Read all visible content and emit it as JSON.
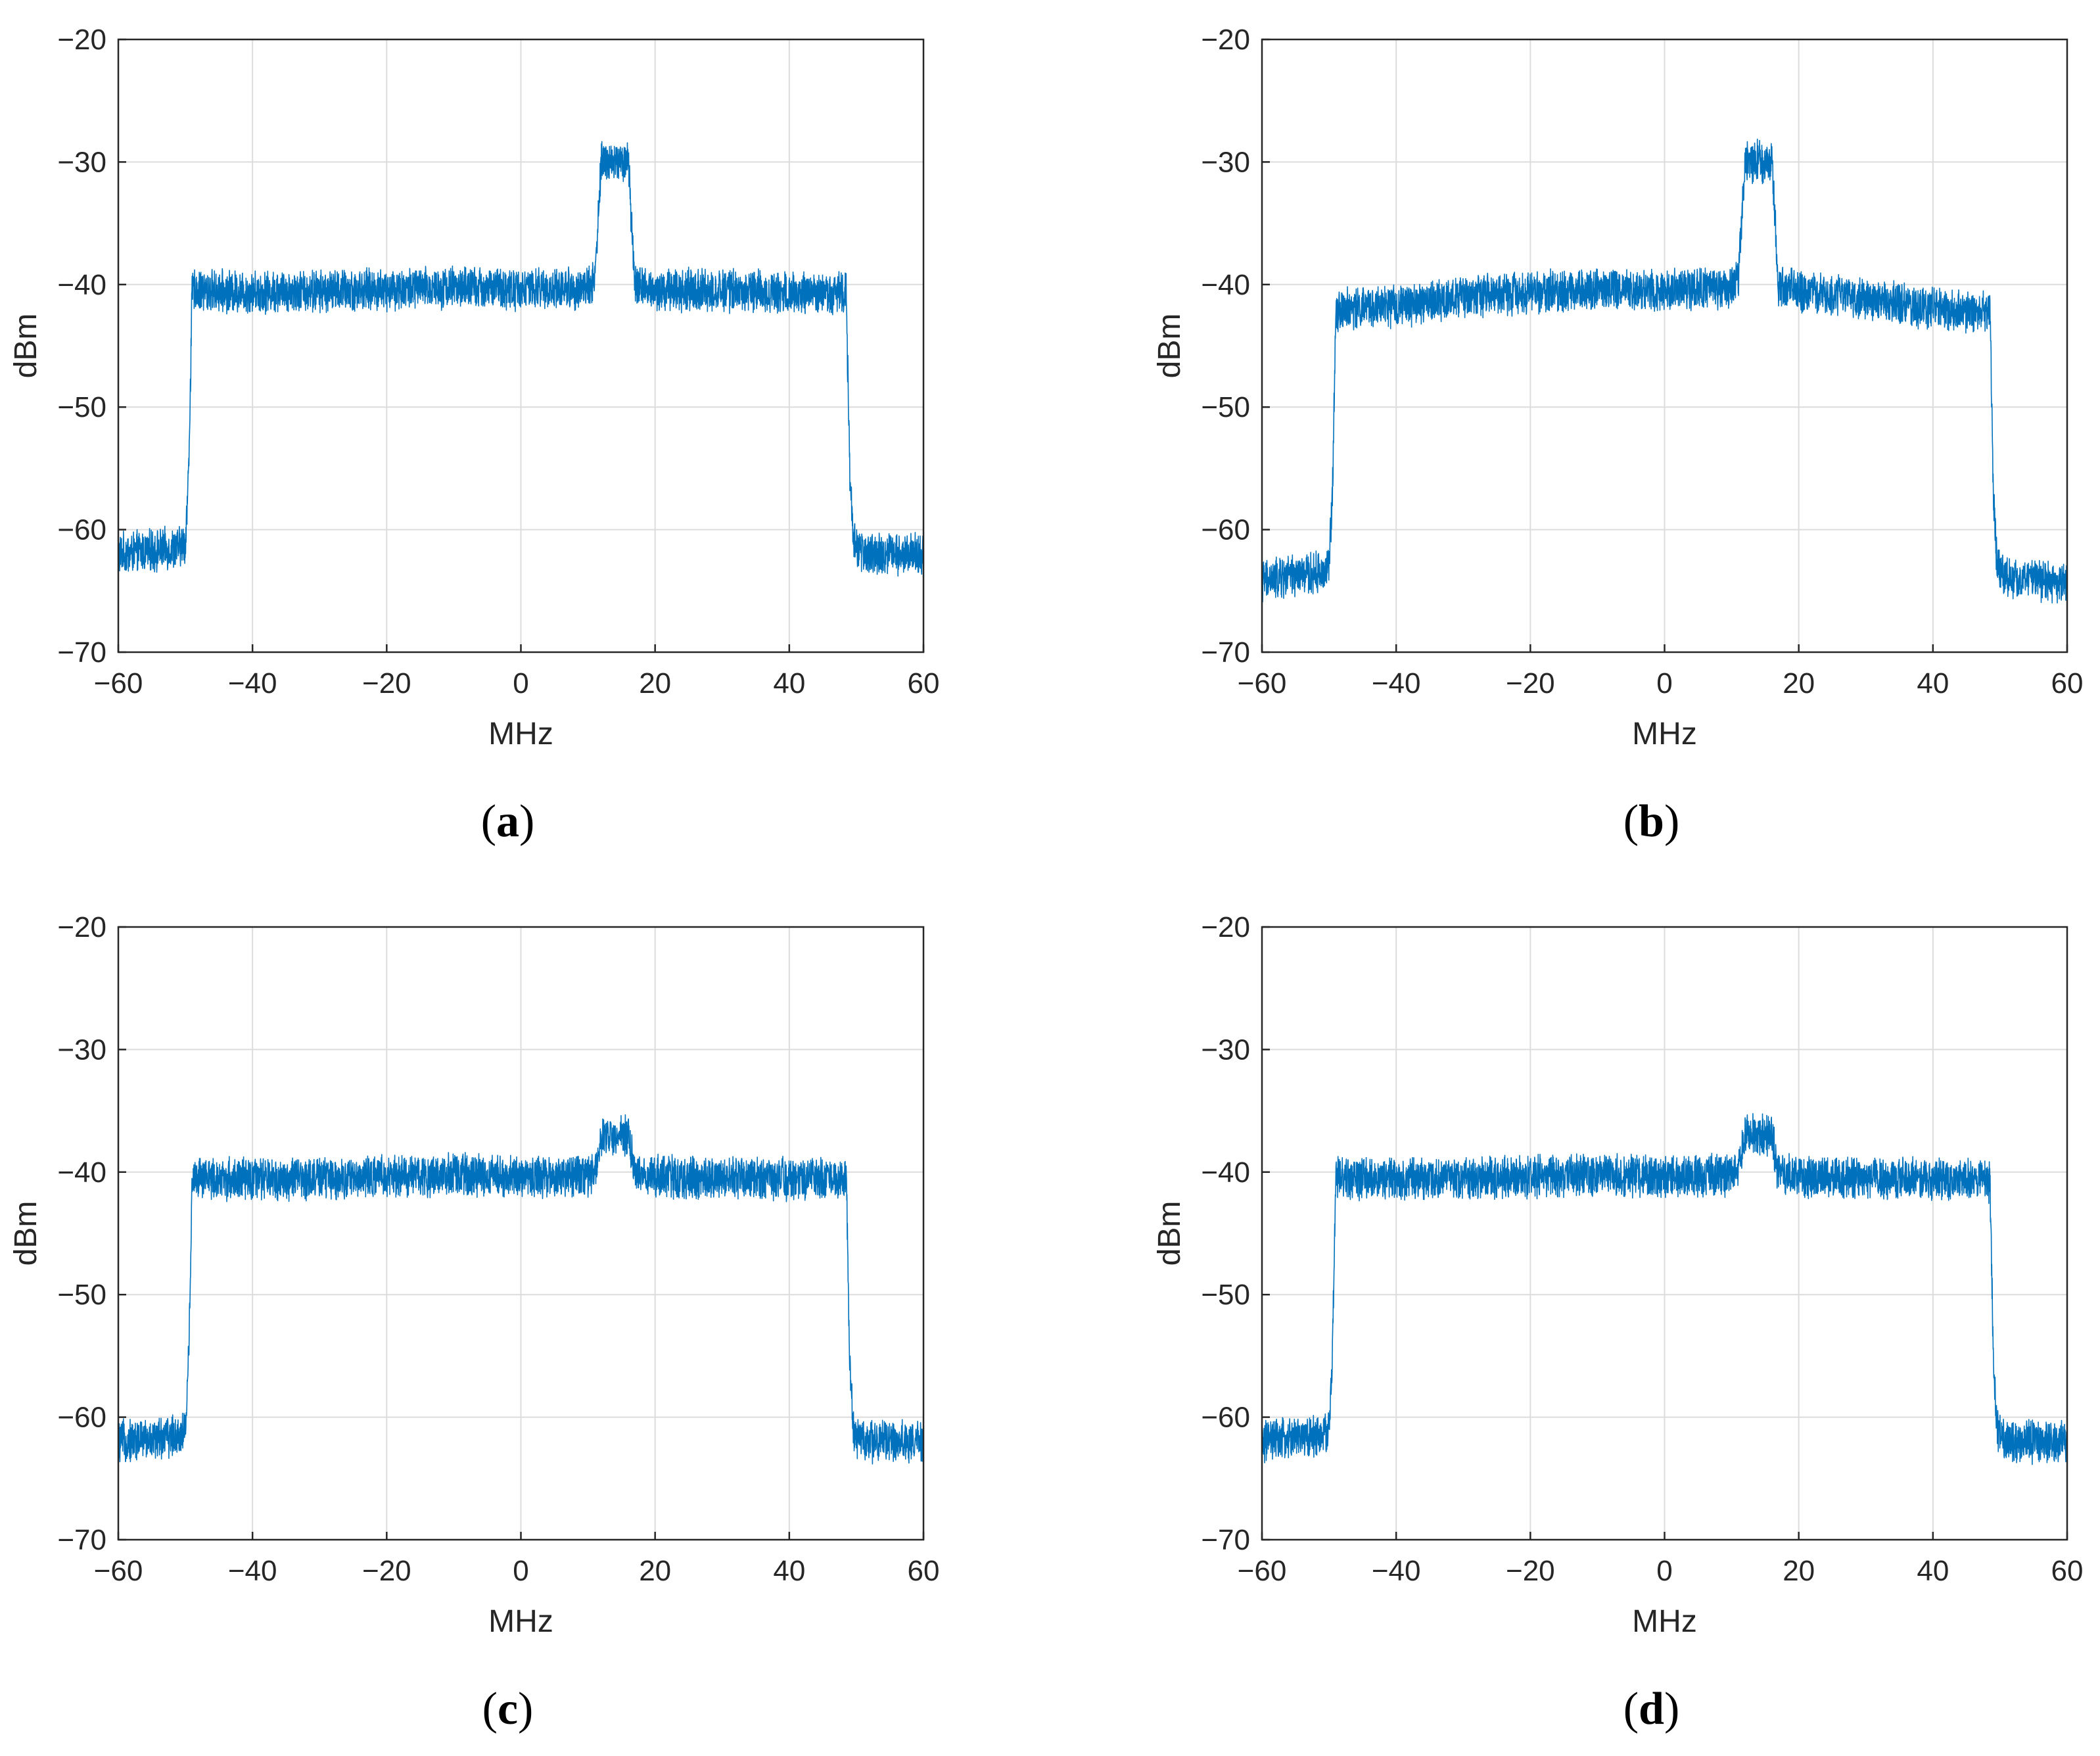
{
  "style": {
    "trace_color": "#0072BD",
    "grid_color": "#dcdcdc",
    "axis_color": "#262626"
  },
  "chart_data": [
    {
      "panel": "a",
      "type": "line",
      "xlabel": "MHz",
      "ylabel": "dBm",
      "xlim": [
        -60,
        60
      ],
      "ylim": [
        -70,
        -20
      ],
      "xticks": [
        -60,
        -40,
        -20,
        0,
        20,
        40,
        60
      ],
      "yticks": [
        -20,
        -30,
        -40,
        -50,
        -60,
        -70
      ],
      "grid": true,
      "series": [
        {
          "x": [
            -60,
            -51,
            -50,
            -49.5,
            -49,
            -40,
            -20,
            -10,
            0,
            10,
            11,
            12,
            16,
            17,
            20,
            30,
            40,
            48.5,
            49,
            49.5,
            50,
            51,
            60
          ],
          "y": [
            -62,
            -61.5,
            -61,
            -55,
            -40.5,
            -40.6,
            -40.4,
            -40.2,
            -40.4,
            -40.3,
            -39.5,
            -30,
            -30,
            -40,
            -40.4,
            -40.5,
            -40.6,
            -40.7,
            -55,
            -61,
            -61.5,
            -62,
            -62
          ]
        }
      ]
    },
    {
      "panel": "b",
      "type": "line",
      "xlabel": "MHz",
      "ylabel": "dBm",
      "xlim": [
        -60,
        60
      ],
      "ylim": [
        -70,
        -20
      ],
      "xticks": [
        -60,
        -40,
        -20,
        0,
        20,
        40,
        60
      ],
      "yticks": [
        -20,
        -30,
        -40,
        -50,
        -60,
        -70
      ],
      "grid": true,
      "series": [
        {
          "x": [
            -60,
            -51,
            -50,
            -49.5,
            -49,
            -40,
            -30,
            -20,
            -10,
            0,
            10,
            11,
            12,
            16,
            17,
            20,
            30,
            40,
            48.5,
            49,
            49.5,
            50,
            51,
            60
          ],
          "y": [
            -64.2,
            -63.5,
            -63,
            -57,
            -42,
            -41.8,
            -41.0,
            -40.6,
            -40.3,
            -40.4,
            -40.3,
            -39.5,
            -30,
            -30,
            -40.2,
            -40.6,
            -41.2,
            -42.0,
            -42.3,
            -57,
            -62.5,
            -63.5,
            -64,
            -64.2
          ]
        }
      ]
    },
    {
      "panel": "c",
      "type": "line",
      "xlabel": "MHz",
      "ylabel": "dBm",
      "xlim": [
        -60,
        60
      ],
      "ylim": [
        -70,
        -20
      ],
      "xticks": [
        -60,
        -40,
        -20,
        0,
        20,
        40,
        60
      ],
      "yticks": [
        -20,
        -30,
        -40,
        -50,
        -60,
        -70
      ],
      "grid": true,
      "series": [
        {
          "x": [
            -60,
            -51,
            -50,
            -49.5,
            -49,
            -40,
            -20,
            -10,
            0,
            10,
            11,
            12,
            16,
            17,
            20,
            30,
            40,
            48.5,
            49,
            49.5,
            50,
            51,
            60
          ],
          "y": [
            -62,
            -61.5,
            -61,
            -55,
            -40.5,
            -40.6,
            -40.4,
            -40.2,
            -40.4,
            -40.3,
            -39.8,
            -37,
            -37,
            -40.2,
            -40.4,
            -40.5,
            -40.6,
            -40.7,
            -55,
            -61,
            -61.5,
            -62,
            -62
          ]
        }
      ]
    },
    {
      "panel": "d",
      "type": "line",
      "xlabel": "MHz",
      "ylabel": "dBm",
      "xlim": [
        -60,
        60
      ],
      "ylim": [
        -70,
        -20
      ],
      "xticks": [
        -60,
        -40,
        -20,
        0,
        20,
        40,
        60
      ],
      "yticks": [
        -20,
        -30,
        -40,
        -50,
        -60,
        -70
      ],
      "grid": true,
      "series": [
        {
          "x": [
            -60,
            -51,
            -50,
            -49.5,
            -49,
            -40,
            -20,
            -10,
            0,
            10,
            11,
            12,
            16,
            17,
            20,
            30,
            40,
            48.5,
            49,
            49.5,
            50,
            51,
            60
          ],
          "y": [
            -62,
            -61.5,
            -61,
            -55,
            -40.5,
            -40.6,
            -40.4,
            -40.2,
            -40.4,
            -40.3,
            -39.8,
            -37,
            -37,
            -40.2,
            -40.4,
            -40.5,
            -40.6,
            -40.7,
            -55,
            -61,
            -61.5,
            -62,
            -62
          ]
        }
      ]
    }
  ]
}
